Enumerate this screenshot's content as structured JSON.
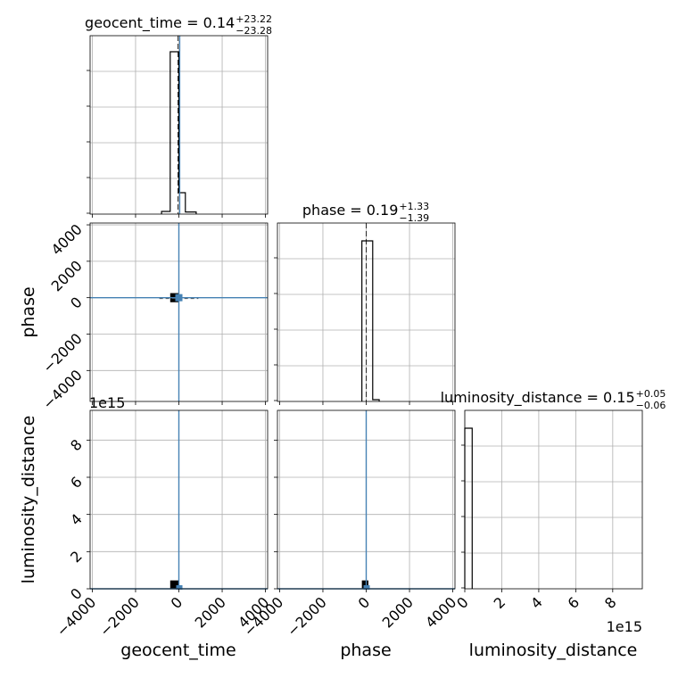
{
  "chart_data": {
    "type": "corner",
    "parameters": [
      "geocent_time",
      "phase",
      "luminosity_distance"
    ],
    "titles": [
      {
        "text": "geocent_time = 0.14",
        "upper": "+23.22",
        "lower": "−23.28"
      },
      {
        "text": "phase = 0.19",
        "upper": "+1.33",
        "lower": "−1.39"
      },
      {
        "text": "luminosity_distance = 0.15",
        "upper": "+0.05",
        "lower": "−0.06"
      }
    ],
    "axis_labels": {
      "x": [
        "geocent_time",
        "phase",
        "luminosity_distance"
      ],
      "y": [
        "phase",
        "luminosity_distance"
      ]
    },
    "ranges": {
      "geocent_time": [
        -4100,
        4100
      ],
      "phase": [
        -5700,
        4100
      ],
      "luminosity_distance": [
        0,
        9.6
      ]
    },
    "ticks": {
      "time_x": [
        "−4000",
        "−2000",
        "0",
        "2000",
        "4000"
      ],
      "time_x_values": [
        -4000,
        -2000,
        0,
        2000,
        4000
      ],
      "phase_y": [
        "4000",
        "2000",
        "0",
        "−2000",
        "−4000"
      ],
      "phase_y_values": [
        4000,
        2000,
        0,
        -2000,
        -4000
      ],
      "lum": [
        "0",
        "2",
        "4",
        "6",
        "8"
      ],
      "lum_values": [
        0,
        2,
        4,
        6,
        8
      ]
    },
    "offset_text": "1e15",
    "grid": true,
    "hist_time": {
      "edges": [
        -800,
        -400,
        -300,
        0,
        300,
        800
      ],
      "counts": [
        0.015,
        0.91,
        0.91,
        0.12,
        0.012
      ]
    },
    "hist_phase": {
      "edges": [
        -200,
        0,
        300,
        600
      ],
      "counts": [
        0.9,
        0.9,
        0.01
      ]
    },
    "hist_lum": {
      "edges": [
        0,
        0.4
      ],
      "counts": [
        0.9
      ]
    },
    "truths": {
      "geocent_time": 0,
      "phase": 0,
      "luminosity_distance": 0
    }
  }
}
